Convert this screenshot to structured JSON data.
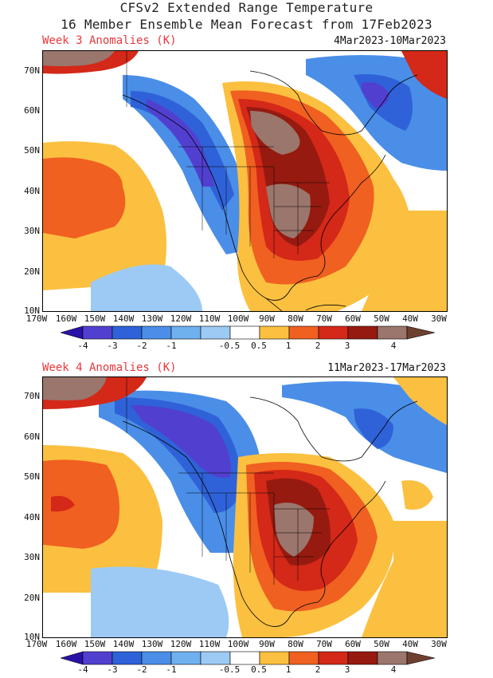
{
  "title_line1": "CFSv2 Extended Range Temperature",
  "title_line2": "16 Member Ensemble Mean Forecast from 17Feb2023",
  "panels": [
    {
      "label": "Week 3 Anomalies (K)",
      "dates": "4Mar2023-10Mar2023"
    },
    {
      "label": "Week 4 Anomalies (K)",
      "dates": "11Mar2023-17Mar2023"
    }
  ],
  "lat_labels": [
    "70N",
    "60N",
    "50N",
    "40N",
    "30N",
    "20N",
    "10N"
  ],
  "lon_labels": [
    "170W",
    "160W",
    "150W",
    "140W",
    "130W",
    "120W",
    "110W",
    "100W",
    "90W",
    "80W",
    "70W",
    "60W",
    "50W",
    "40W",
    "30W"
  ],
  "colorbar": {
    "labels": [
      "-4",
      "-3",
      "-2",
      "-1",
      "-0.5",
      "0.5",
      "1",
      "2",
      "3",
      "4"
    ],
    "colors": [
      "#2a11a8",
      "#5140d0",
      "#2f62d8",
      "#4a8ee8",
      "#9ccaf4",
      "#ffffff",
      "#fbc040",
      "#f06020",
      "#d42818",
      "#961a10",
      "#9a766c",
      "#6e4030"
    ]
  }
}
